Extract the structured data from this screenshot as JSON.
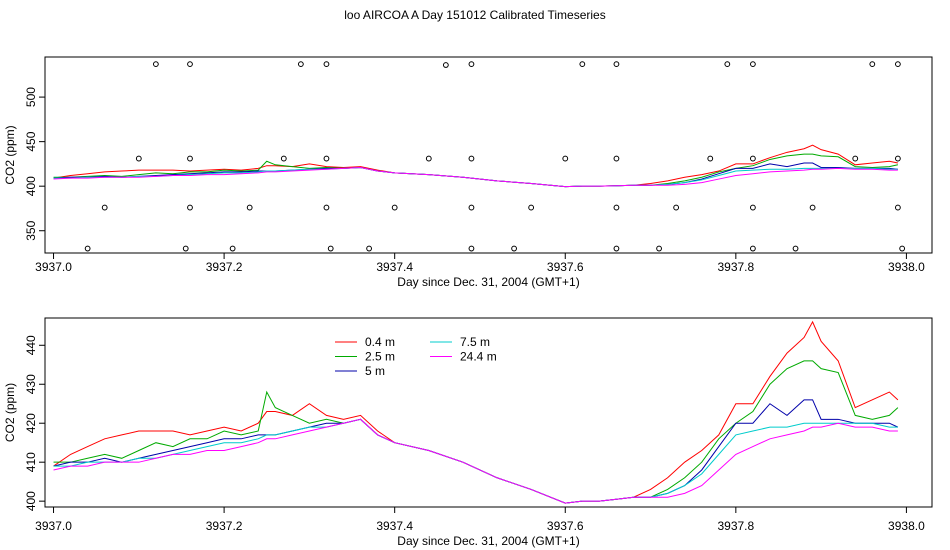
{
  "title": "loo AIRCOA A  Day 151012  Calibrated Timeseries",
  "chart_data": [
    {
      "type": "scatter",
      "xlabel": "Day since Dec. 31, 2004 (GMT+1)",
      "ylabel": "CO2 (ppm)",
      "xlim": [
        3936.99,
        3938.03
      ],
      "ylim": [
        325,
        545
      ],
      "x_ticks": [
        "3937.0",
        "3937.2",
        "3937.4",
        "3937.6",
        "3937.8",
        "3938.0"
      ],
      "y_ticks": [
        "350",
        "400",
        "450",
        "500"
      ],
      "grid": false,
      "series": [
        {
          "name": "",
          "color": "#000000",
          "x": [
            3937.12,
            3937.16,
            3937.29,
            3937.32,
            3937.46,
            3937.49,
            3937.62,
            3937.66,
            3937.79,
            3937.82,
            3937.96,
            3937.99
          ],
          "y": [
            537,
            537,
            537,
            537,
            536,
            537,
            537,
            537,
            537,
            537,
            537,
            537
          ]
        },
        {
          "name": "",
          "color": "#000000",
          "x": [
            3937.1,
            3937.16,
            3937.27,
            3937.32,
            3937.44,
            3937.49,
            3937.6,
            3937.66,
            3937.77,
            3937.82,
            3937.94,
            3937.99
          ],
          "y": [
            431,
            431,
            431,
            431,
            431,
            431,
            431,
            431,
            431,
            431,
            431,
            431
          ]
        },
        {
          "name": "",
          "color": "#000000",
          "x": [
            3937.06,
            3937.16,
            3937.23,
            3937.32,
            3937.4,
            3937.49,
            3937.56,
            3937.66,
            3937.73,
            3937.82,
            3937.89,
            3937.99
          ],
          "y": [
            376,
            376,
            376,
            376,
            376,
            376,
            376,
            376,
            376,
            376,
            376,
            376
          ]
        },
        {
          "name": "",
          "color": "#000000",
          "x": [
            3937.04,
            3937.155,
            3937.21,
            3937.325,
            3937.37,
            3937.49,
            3937.54,
            3937.66,
            3937.71,
            3937.82,
            3937.87,
            3937.995
          ],
          "y": [
            330,
            330,
            330,
            330,
            330,
            330,
            330,
            330,
            330,
            330,
            330,
            330
          ]
        }
      ]
    },
    {
      "type": "line",
      "xlabel": "Day since Dec. 31, 2004 (GMT+1)",
      "ylabel": "CO2 (ppm)",
      "xlim": [
        3936.99,
        3938.03
      ],
      "ylim": [
        398.5,
        447
      ],
      "x_ticks": [
        "3937.0",
        "3937.2",
        "3937.4",
        "3937.6",
        "3937.8",
        "3938.0"
      ],
      "y_ticks": [
        "400",
        "410",
        "420",
        "430",
        "440"
      ],
      "grid": false,
      "legend_position": "top-left",
      "x": [
        3937.0,
        3937.02,
        3937.04,
        3937.06,
        3937.08,
        3937.1,
        3937.12,
        3937.14,
        3937.16,
        3937.18,
        3937.2,
        3937.22,
        3937.24,
        3937.25,
        3937.26,
        3937.28,
        3937.3,
        3937.32,
        3937.34,
        3937.36,
        3937.38,
        3937.4,
        3937.44,
        3937.48,
        3937.52,
        3937.56,
        3937.6,
        3937.62,
        3937.64,
        3937.66,
        3937.68,
        3937.7,
        3937.72,
        3937.74,
        3937.76,
        3937.78,
        3937.8,
        3937.82,
        3937.84,
        3937.86,
        3937.88,
        3937.89,
        3937.9,
        3937.92,
        3937.94,
        3937.96,
        3937.98,
        3937.99
      ],
      "series": [
        {
          "name": "0.4 m",
          "color": "#ff0000",
          "values": [
            409,
            412,
            414,
            416,
            417,
            418,
            418,
            418,
            417,
            418,
            419,
            418,
            420,
            423,
            423,
            422,
            425,
            422,
            421,
            422,
            418,
            415,
            413,
            410,
            406,
            403,
            399.5,
            400,
            400,
            400.5,
            401,
            403,
            406,
            410,
            413,
            417,
            425,
            425,
            432,
            438,
            442,
            446,
            441,
            436,
            424,
            426,
            428,
            426
          ]
        },
        {
          "name": "2.5 m",
          "color": "#00aa00",
          "values": [
            410,
            410,
            411,
            412,
            411,
            413,
            415,
            414,
            416,
            416,
            418,
            417,
            418,
            428,
            424,
            422,
            420,
            421,
            420,
            421,
            417,
            415,
            413,
            410,
            406,
            403,
            399.5,
            400,
            400,
            400.5,
            401,
            401,
            403,
            406,
            410,
            416,
            420,
            423,
            430,
            434,
            436,
            436,
            434,
            433,
            422,
            421,
            422,
            424
          ]
        },
        {
          "name": "5 m",
          "color": "#0000aa",
          "values": [
            409,
            410,
            410,
            411,
            410,
            411,
            412,
            413,
            414,
            415,
            416,
            416,
            417,
            417,
            417,
            418,
            419,
            420,
            420,
            421,
            417,
            415,
            413,
            410,
            406,
            403,
            399.5,
            400,
            400,
            400.5,
            401,
            401,
            402,
            404,
            408,
            414,
            420,
            420,
            425,
            422,
            426,
            426,
            421,
            421,
            420,
            420,
            420,
            419
          ]
        },
        {
          "name": "7.5 m",
          "color": "#00cccc",
          "values": [
            409,
            409,
            410,
            410,
            410,
            411,
            411,
            412,
            413,
            414,
            415,
            415,
            416,
            417,
            417,
            418,
            419,
            419,
            420,
            421,
            417,
            415,
            413,
            410,
            406,
            403,
            399.5,
            400,
            400,
            400.5,
            401,
            401,
            402,
            404,
            407,
            412,
            417,
            418,
            419,
            419,
            420,
            420,
            420,
            420,
            420,
            420,
            419,
            419
          ]
        },
        {
          "name": "24.4 m",
          "color": "#ff00ff",
          "values": [
            408,
            409,
            409,
            410,
            410,
            410,
            411,
            412,
            412,
            413,
            413,
            414,
            415,
            416,
            416,
            417,
            418,
            419,
            420,
            421,
            417,
            415,
            413,
            410,
            406,
            403,
            399.5,
            400,
            400,
            400.5,
            401,
            401,
            401,
            402,
            404,
            408,
            412,
            414,
            416,
            417,
            418,
            419,
            419,
            420,
            419,
            419,
            418,
            418
          ]
        }
      ]
    }
  ]
}
